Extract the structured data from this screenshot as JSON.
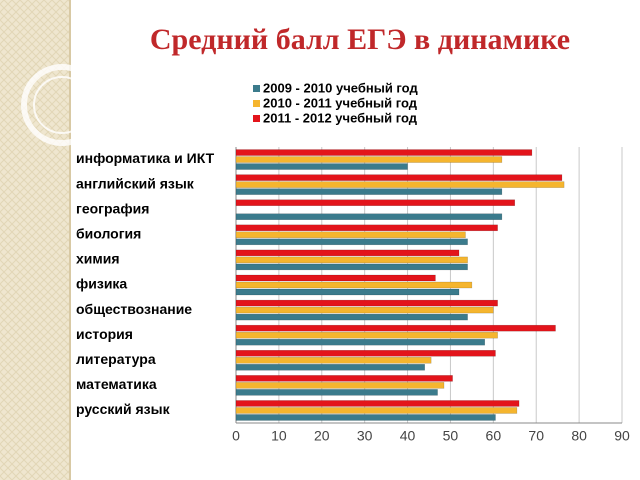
{
  "chart_data": {
    "type": "bar",
    "orientation": "horizontal",
    "title": "Средний балл ЕГЭ в динамике",
    "categories": [
      "информатика и ИКТ",
      "английский язык",
      "география",
      "биология",
      "химия",
      "физика",
      "обществознание",
      "история",
      "литература",
      "математика",
      "русский язык"
    ],
    "series": [
      {
        "name": "2009 - 2010 учебный год",
        "color": "#3b7b8c",
        "values": [
          40,
          62,
          62,
          54,
          54,
          52,
          54,
          58,
          44,
          47,
          60.5
        ]
      },
      {
        "name": "2010 - 2011 учебный год",
        "color": "#f5b52e",
        "values": [
          62,
          76.5,
          null,
          53.5,
          54,
          55,
          60,
          61,
          45.5,
          48.5,
          65.5
        ]
      },
      {
        "name": "2011 - 2012 учебный год",
        "color": "#e3141b",
        "values": [
          69,
          76,
          65,
          61,
          52,
          46.5,
          61,
          74.5,
          60.5,
          50.5,
          66
        ]
      }
    ],
    "xlim": [
      0,
      90
    ],
    "xticks": [
      0,
      10,
      20,
      30,
      40,
      50,
      60,
      70,
      80,
      90
    ],
    "grid": true,
    "legend": "top"
  }
}
